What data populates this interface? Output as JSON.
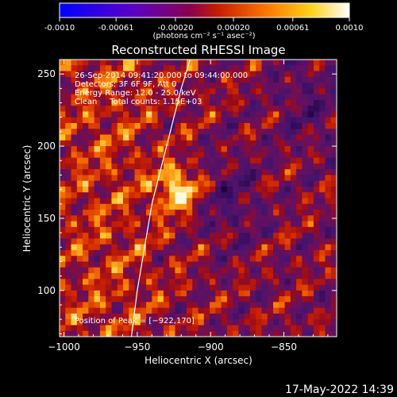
{
  "colorbar": {
    "tick_labels": [
      "-0.0010",
      "-0.00061",
      "-0.00020",
      "0.00020",
      "0.00061",
      "0.0010"
    ],
    "tick_values": [
      -0.001,
      -0.00061,
      -0.0002,
      0.0002,
      0.00061,
      0.001
    ],
    "range": [
      -0.001,
      0.001
    ],
    "units_label": "(photons cm⁻² s⁻¹ asec⁻²)",
    "colors": [
      "#0000ff",
      "#5a00c8",
      "#8a0050",
      "#c81e00",
      "#ff7a00",
      "#ffd21e",
      "#ffffff"
    ]
  },
  "chart_data": {
    "type": "heatmap",
    "title": "Reconstructed RHESSI Image",
    "xlabel": "Heliocentric X (arcsec)",
    "ylabel": "Heliocentric Y (arcsec)",
    "xlim": [
      -1003,
      -814
    ],
    "ylim": [
      68,
      260
    ],
    "x_ticks": [
      -1000,
      -950,
      -900,
      -850
    ],
    "x_tick_labels": [
      "−1000",
      "−950",
      "−900",
      "−850"
    ],
    "y_ticks": [
      100,
      150,
      200,
      250
    ],
    "y_tick_labels": [
      "100",
      "150",
      "200",
      "250"
    ],
    "annotations": [
      "26-Sep-2014 09:41:20.000 to 09:44:00.000",
      "Detectors: 3F 6F 9F, Att 0",
      "Energy Range: 12.0 - 25.0 keV",
      "Clean     Total counts: 1.15E+03"
    ],
    "peak_label": "Position of Peak = [−922,170]",
    "peak": [
      -922,
      170
    ],
    "limb_points": [
      [
        -954,
        68
      ],
      [
        -950,
        100
      ],
      [
        -945,
        130
      ],
      [
        -940,
        160
      ],
      [
        -935,
        180
      ],
      [
        -930,
        200
      ],
      [
        -925,
        220
      ],
      [
        -920,
        240
      ],
      [
        -914,
        260
      ]
    ]
  },
  "footer": {
    "timestamp": "17-May-2022 14:39"
  }
}
